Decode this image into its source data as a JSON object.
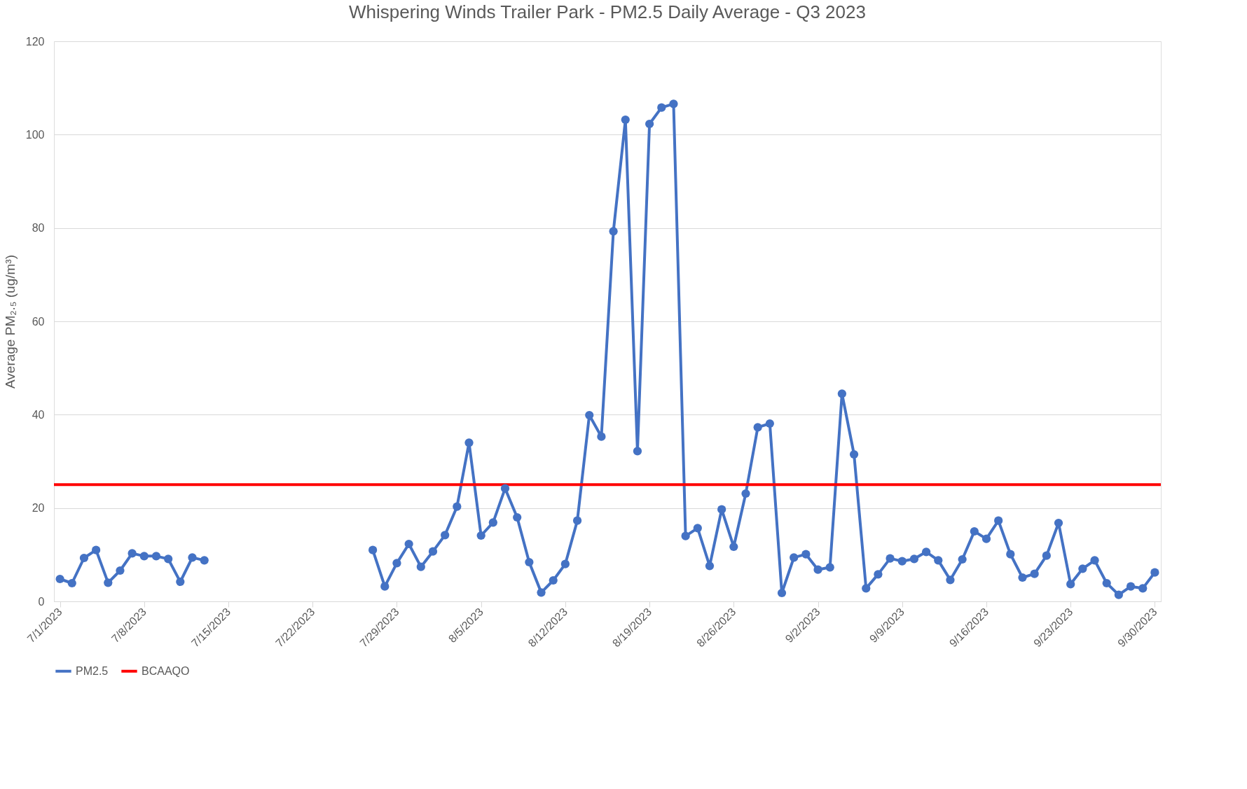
{
  "chart_data": {
    "type": "line",
    "title": "Whispering Winds Trailer Park - PM2.5 Daily Average - Q3 2023",
    "ylabel": "Average PM₂.₅ (ug/m³)",
    "x": [
      "2023-07-01",
      "2023-07-02",
      "2023-07-03",
      "2023-07-04",
      "2023-07-05",
      "2023-07-06",
      "2023-07-07",
      "2023-07-08",
      "2023-07-09",
      "2023-07-10",
      "2023-07-11",
      "2023-07-12",
      "2023-07-13",
      "2023-07-14",
      "2023-07-15",
      "2023-07-16",
      "2023-07-17",
      "2023-07-18",
      "2023-07-19",
      "2023-07-20",
      "2023-07-21",
      "2023-07-22",
      "2023-07-23",
      "2023-07-24",
      "2023-07-25",
      "2023-07-26",
      "2023-07-27",
      "2023-07-28",
      "2023-07-29",
      "2023-07-30",
      "2023-07-31",
      "2023-08-01",
      "2023-08-02",
      "2023-08-03",
      "2023-08-04",
      "2023-08-05",
      "2023-08-06",
      "2023-08-07",
      "2023-08-08",
      "2023-08-09",
      "2023-08-10",
      "2023-08-11",
      "2023-08-12",
      "2023-08-13",
      "2023-08-14",
      "2023-08-15",
      "2023-08-16",
      "2023-08-17",
      "2023-08-18",
      "2023-08-19",
      "2023-08-20",
      "2023-08-21",
      "2023-08-22",
      "2023-08-23",
      "2023-08-24",
      "2023-08-25",
      "2023-08-26",
      "2023-08-27",
      "2023-08-28",
      "2023-08-29",
      "2023-08-30",
      "2023-08-31",
      "2023-09-01",
      "2023-09-02",
      "2023-09-03",
      "2023-09-04",
      "2023-09-05",
      "2023-09-06",
      "2023-09-07",
      "2023-09-08",
      "2023-09-09",
      "2023-09-10",
      "2023-09-11",
      "2023-09-12",
      "2023-09-13",
      "2023-09-14",
      "2023-09-15",
      "2023-09-16",
      "2023-09-17",
      "2023-09-18",
      "2023-09-19",
      "2023-09-20",
      "2023-09-21",
      "2023-09-22",
      "2023-09-23",
      "2023-09-24",
      "2023-09-25",
      "2023-09-26",
      "2023-09-27",
      "2023-09-28",
      "2023-09-29",
      "2023-09-30"
    ],
    "series": [
      {
        "name": "PM2.5",
        "color": "#4472c4",
        "values": [
          4.8,
          3.9,
          9.3,
          11,
          4,
          6.6,
          10.3,
          9.7,
          9.7,
          9.1,
          4.2,
          9.4,
          8.8,
          null,
          null,
          null,
          null,
          null,
          null,
          null,
          null,
          null,
          null,
          null,
          null,
          null,
          11,
          3.2,
          8.2,
          12.3,
          7.4,
          10.7,
          14.2,
          20.3,
          34,
          14.1,
          16.9,
          24.2,
          18,
          8.4,
          1.9,
          4.5,
          8,
          17.3,
          39.9,
          35.3,
          79.3,
          103.2,
          32.2,
          102.3,
          105.8,
          106.6,
          14,
          15.7,
          7.6,
          19.7,
          11.7,
          23.1,
          37.3,
          38.1,
          1.8,
          9.4,
          10.1,
          6.8,
          7.3,
          44.5,
          31.5,
          2.8,
          5.8,
          9.2,
          8.6,
          9.1,
          10.6,
          8.8,
          4.6,
          9,
          15,
          13.4,
          17.3,
          10.1,
          5.1,
          5.9,
          9.8,
          16.8,
          3.7,
          7,
          8.8,
          3.9,
          1.4,
          3.2,
          2.8,
          6.2
        ]
      }
    ],
    "ref_lines": [
      {
        "axis": "y",
        "value": 25,
        "label": "BCAAQO",
        "color": "#ff0000"
      }
    ],
    "xlim": [
      "2023-06-30T12:00",
      "2023-09-30T12:00"
    ],
    "xticks": [
      {
        "value": "2023-07-01",
        "label": "7/1/2023"
      },
      {
        "value": "2023-07-08",
        "label": "7/8/2023"
      },
      {
        "value": "2023-07-15",
        "label": "7/15/2023"
      },
      {
        "value": "2023-07-22",
        "label": "7/22/2023"
      },
      {
        "value": "2023-07-29",
        "label": "7/29/2023"
      },
      {
        "value": "2023-08-05",
        "label": "8/5/2023"
      },
      {
        "value": "2023-08-12",
        "label": "8/12/2023"
      },
      {
        "value": "2023-08-19",
        "label": "8/19/2023"
      },
      {
        "value": "2023-08-26",
        "label": "8/26/2023"
      },
      {
        "value": "2023-09-02",
        "label": "9/2/2023"
      },
      {
        "value": "2023-09-09",
        "label": "9/9/2023"
      },
      {
        "value": "2023-09-16",
        "label": "9/16/2023"
      },
      {
        "value": "2023-09-23",
        "label": "9/23/2023"
      },
      {
        "value": "2023-09-30",
        "label": "9/30/2023"
      }
    ],
    "ylim": [
      0,
      120
    ],
    "yticks": [
      0,
      20,
      40,
      60,
      80,
      100,
      120
    ],
    "grid": "y",
    "legend": "bottom",
    "marker": "circle",
    "line_style": "solid"
  }
}
